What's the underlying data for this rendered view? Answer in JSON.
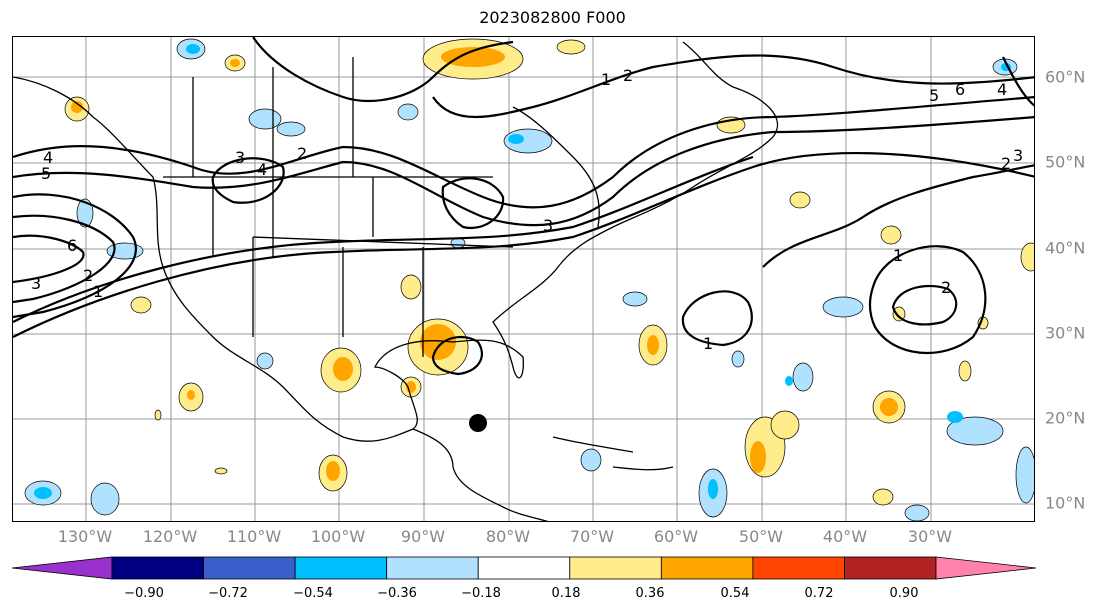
{
  "title": "2023082800 F000",
  "lon_labels": [
    "130°W",
    "120°W",
    "110°W",
    "100°W",
    "90°W",
    "80°W",
    "70°W",
    "60°W",
    "50°W",
    "40°W",
    "30°W"
  ],
  "lat_labels": [
    "60°N",
    "50°N",
    "40°N",
    "30°N",
    "20°N",
    "10°N"
  ],
  "contour_labels": [
    "1",
    "2",
    "3",
    "4",
    "5",
    "6"
  ],
  "colorbar": {
    "ticks": [
      "−0.90",
      "−0.72",
      "−0.54",
      "−0.36",
      "−0.18",
      "0.18",
      "0.36",
      "0.54",
      "0.72",
      "0.90"
    ],
    "colors": [
      "#9932CC",
      "#000080",
      "#3A5FCD",
      "#00BFFF",
      "#B0E2FF",
      "#FFFFFF",
      "#FFEC8B",
      "#FFA500",
      "#FF4500",
      "#B22222",
      "#FF82AB"
    ]
  },
  "storm_marker": "black-dot"
}
